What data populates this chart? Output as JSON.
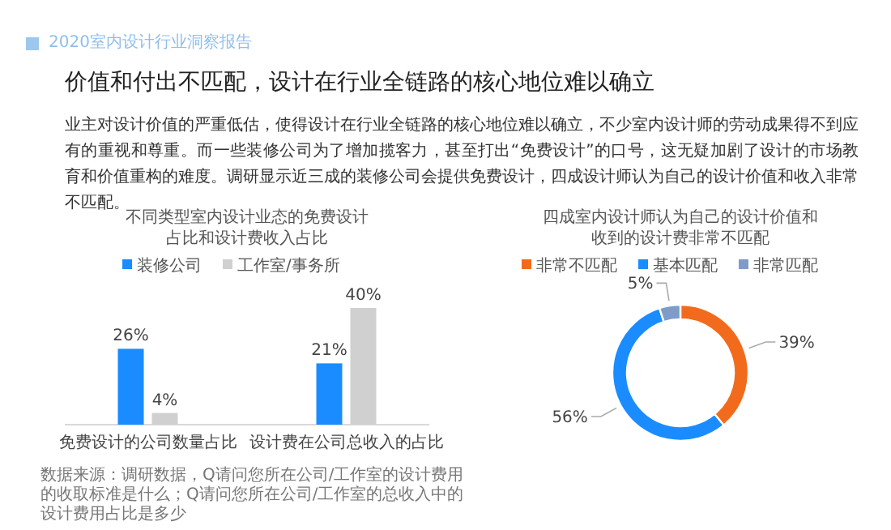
{
  "chart_data": [
    {
      "type": "other",
      "title": "价值和付出不匹配，设计在行业全链路的核心地位难以确立",
      "subtitle": "业主对设计价值的严重低估，使得设计在行业全链路的核心地位难以确立，不少室内设计师的劳动成果得不到应有的重视和尊重。而一些装修公司为了增加揽客力，甚至打出“免费设计”的口号，这无疑加剧了设计的市场教育和价值重构的难度。调研显示近三成的装修公司会提供免费设计，四成设计师认为自己的设计价值和收入非常不匹配。",
      "annotations": [
        "2020室内设计行业洞察报告"
      ]
    },
    {
      "type": "bar",
      "title": "不同类型室内设计业态的免费设计占比和设计费收入占比",
      "categories": [
        "免费设计的公司数量占比",
        "设计费在公司总收入的占比"
      ],
      "legend": "top",
      "series": [
        {
          "name": "装修公司",
          "color": "#1a8cff",
          "values": [
            26,
            21
          ],
          "value_labels": [
            "26%",
            "21%"
          ]
        },
        {
          "name": "工作室/事务所",
          "color": "#d0d0d0",
          "values": [
            4,
            40
          ],
          "value_labels": [
            "4%",
            "40%"
          ]
        }
      ],
      "annotations": [
        "数据来源：调研数据，Q请问您所在公司/工作室的设计费用的收取标准是什么；Q请问您所在公司/工作室的总收入中的设计费用占比是多少"
      ]
    },
    {
      "type": "donut",
      "title": "四成室内设计师认为自己的设计价值和收到的设计费非常不匹配",
      "legend": "top",
      "categories": [
        "非常不匹配",
        "基本匹配",
        "非常匹配"
      ],
      "values": [
        39,
        56,
        5
      ],
      "colors": [
        "#f26b1d",
        "#1a8cff",
        "#7f9cc9"
      ],
      "value_labels": [
        "39%",
        "56%",
        "5%"
      ]
    }
  ]
}
